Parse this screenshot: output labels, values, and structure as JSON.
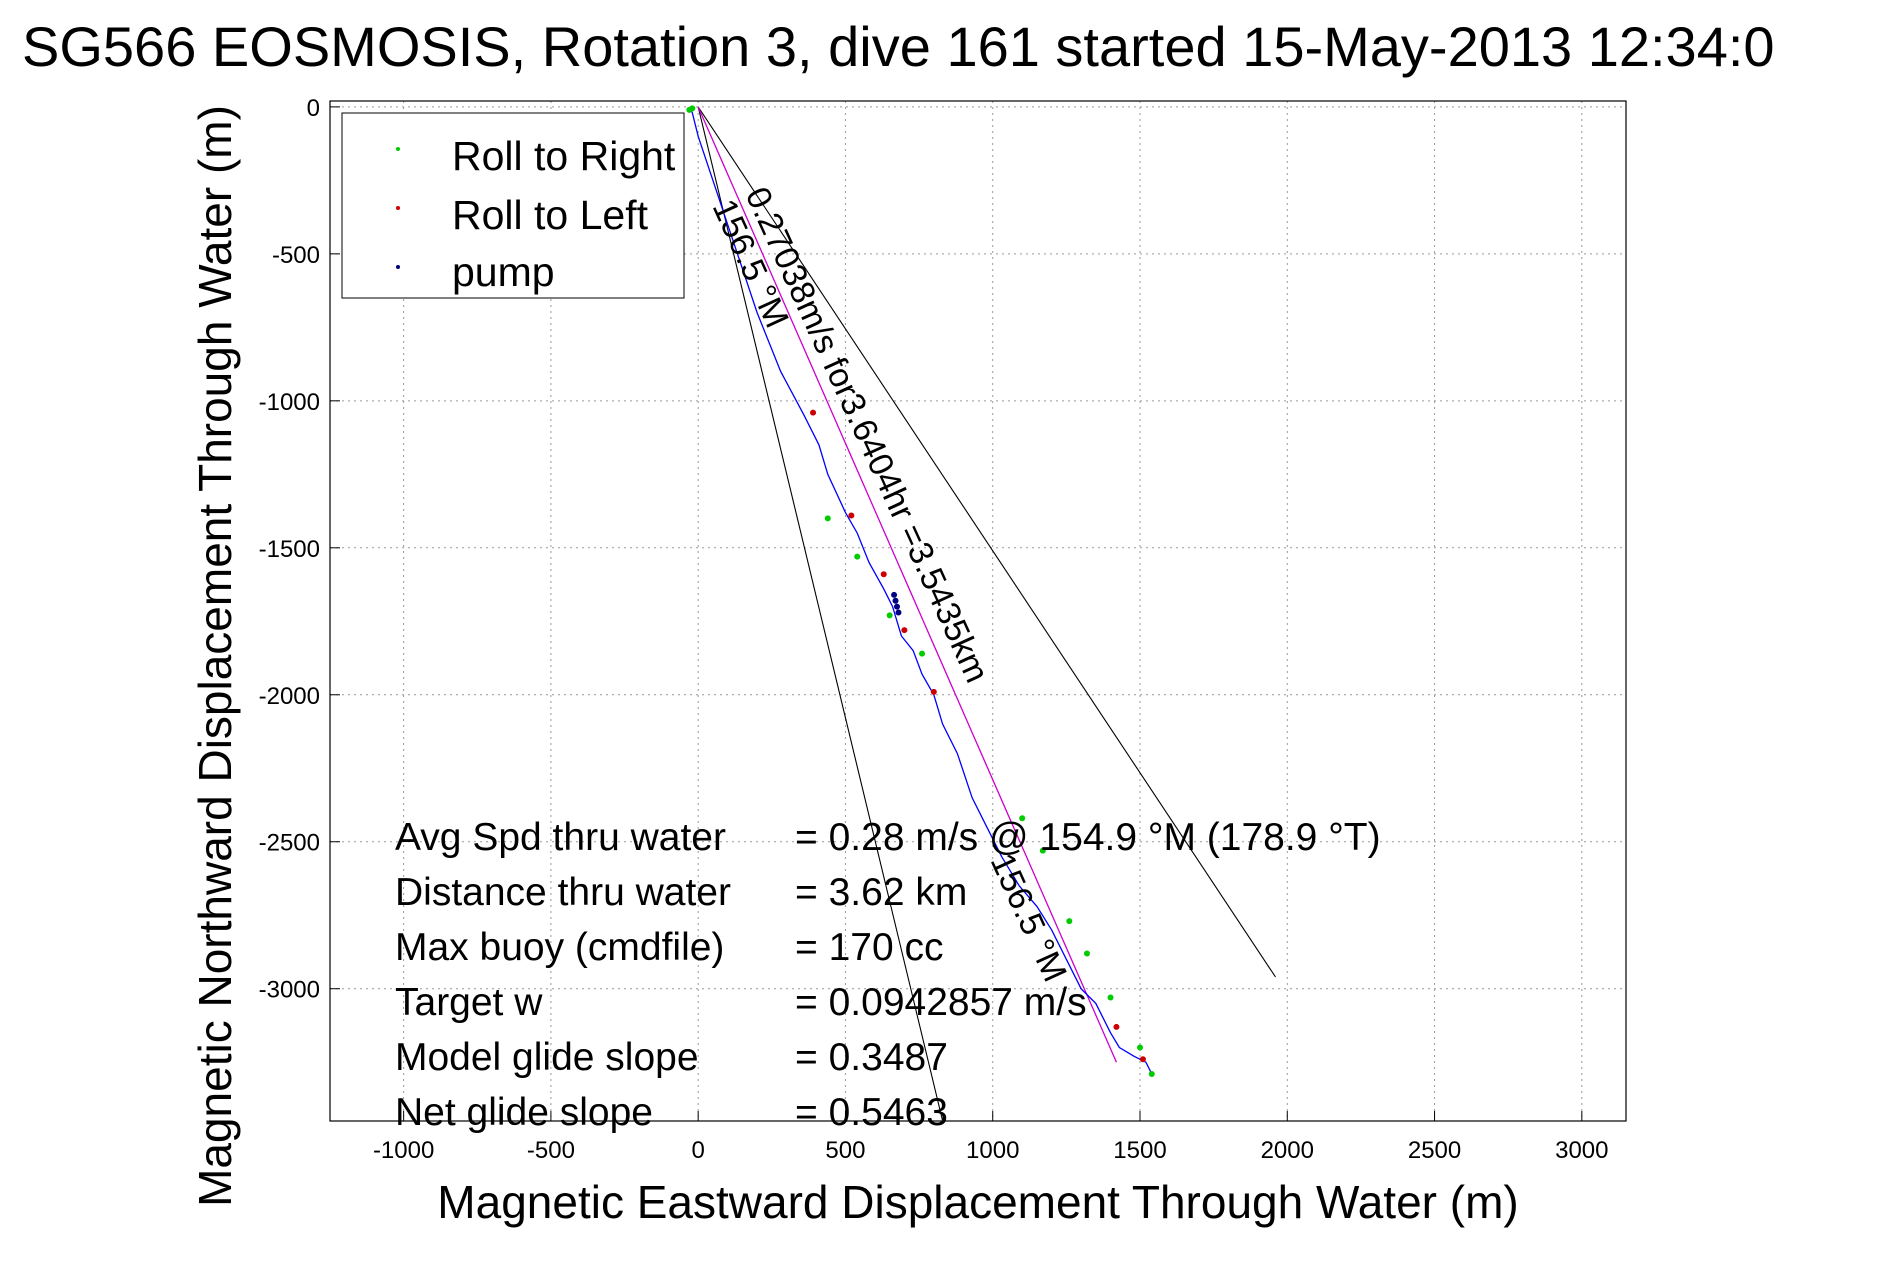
{
  "chart_data": {
    "type": "line",
    "title": "SG566 EOSMOSIS, Rotation 3, dive 161 started 15-May-2013 12:34:0",
    "xlabel": "Magnetic Eastward Displacement Through Water (m)",
    "ylabel": "Magnetic Northward Displacement Through Water (m)",
    "xlim": [
      -1250,
      3150
    ],
    "ylim": [
      -3450,
      20
    ],
    "xticks": [
      -1000,
      -500,
      0,
      500,
      1000,
      1500,
      2000,
      2500,
      3000
    ],
    "yticks": [
      0,
      -500,
      -1000,
      -1500,
      -2000,
      -2500,
      -3000
    ],
    "xtick_labels": [
      "-1000",
      "-500",
      "0",
      "500",
      "1000",
      "1500",
      "2000",
      "2500",
      "3000"
    ],
    "ytick_labels": [
      "0",
      "-500",
      "-1000",
      "-1500",
      "-2000",
      "-2500",
      "-3000"
    ],
    "grid": true,
    "legend_position": "top-left",
    "legend": [
      "Roll to Right",
      "Roll to Left",
      "pump"
    ],
    "colors": {
      "track": "#0000ff",
      "heading_line": "#cc00cc",
      "cone_lines": "#000000",
      "roll_right": "#00cc00",
      "roll_left": "#cc0000",
      "pump": "#000080"
    },
    "series": [
      {
        "name": "track",
        "x": [
          -30,
          -20,
          0,
          100,
          200,
          280,
          360,
          410,
          440,
          500,
          540,
          580,
          630,
          660,
          690,
          730,
          760,
          800,
          830,
          880,
          930,
          980,
          1030,
          1090,
          1150,
          1200,
          1250,
          1300,
          1350,
          1400,
          1430,
          1480,
          1520,
          1540
        ],
        "y": [
          0,
          -20,
          -100,
          -400,
          -700,
          -900,
          -1050,
          -1150,
          -1250,
          -1380,
          -1450,
          -1550,
          -1640,
          -1700,
          -1800,
          -1850,
          -1930,
          -2000,
          -2100,
          -2200,
          -2350,
          -2450,
          -2550,
          -2650,
          -2720,
          -2800,
          -2900,
          -3000,
          -3050,
          -3150,
          -3200,
          -3230,
          -3250,
          -3290
        ]
      },
      {
        "name": "heading",
        "x": [
          0,
          1420
        ],
        "y": [
          0,
          -3250
        ]
      },
      {
        "name": "cone_left",
        "x": [
          0,
          830
        ],
        "y": [
          0,
          -3450
        ]
      },
      {
        "name": "cone_right",
        "x": [
          0,
          1960
        ],
        "y": [
          0,
          -2960
        ]
      },
      {
        "name": "Roll to Right",
        "x": [
          -30,
          -20,
          440,
          540,
          650,
          760,
          1100,
          1170,
          1260,
          1320,
          1400,
          1500,
          1540
        ],
        "y": [
          -10,
          -5,
          -1400,
          -1530,
          -1730,
          -1860,
          -2420,
          -2530,
          -2770,
          -2880,
          -3030,
          -3200,
          -3290
        ]
      },
      {
        "name": "Roll to Left",
        "x": [
          390,
          520,
          630,
          700,
          800,
          1420,
          1510
        ],
        "y": [
          -1040,
          -1390,
          -1590,
          -1780,
          -1990,
          -3130,
          -3240
        ]
      },
      {
        "name": "pump",
        "x": [
          665,
          670,
          675,
          680
        ],
        "y": [
          -1660,
          -1680,
          -1700,
          -1720
        ]
      }
    ],
    "annotations": {
      "heading_label": "0.27038m/s for3.6404hr =3.5435km",
      "left_heading": "156.5 °M",
      "right_heading": "156.5 °M",
      "stats": [
        {
          "label": "Avg Spd thru water",
          "value": "=  0.28 m/s @ 154.9 °M (178.9 °T)"
        },
        {
          "label": "Distance thru water",
          "value": "=  3.62 km"
        },
        {
          "label": "Max buoy (cmdfile)",
          "value": "= 170 cc"
        },
        {
          "label": "Target w",
          "value": "= 0.0942857 m/s"
        },
        {
          "label": "Model glide slope",
          "value": "= 0.3487"
        },
        {
          "label": "Net glide slope",
          "value": "= 0.5463"
        }
      ]
    }
  }
}
